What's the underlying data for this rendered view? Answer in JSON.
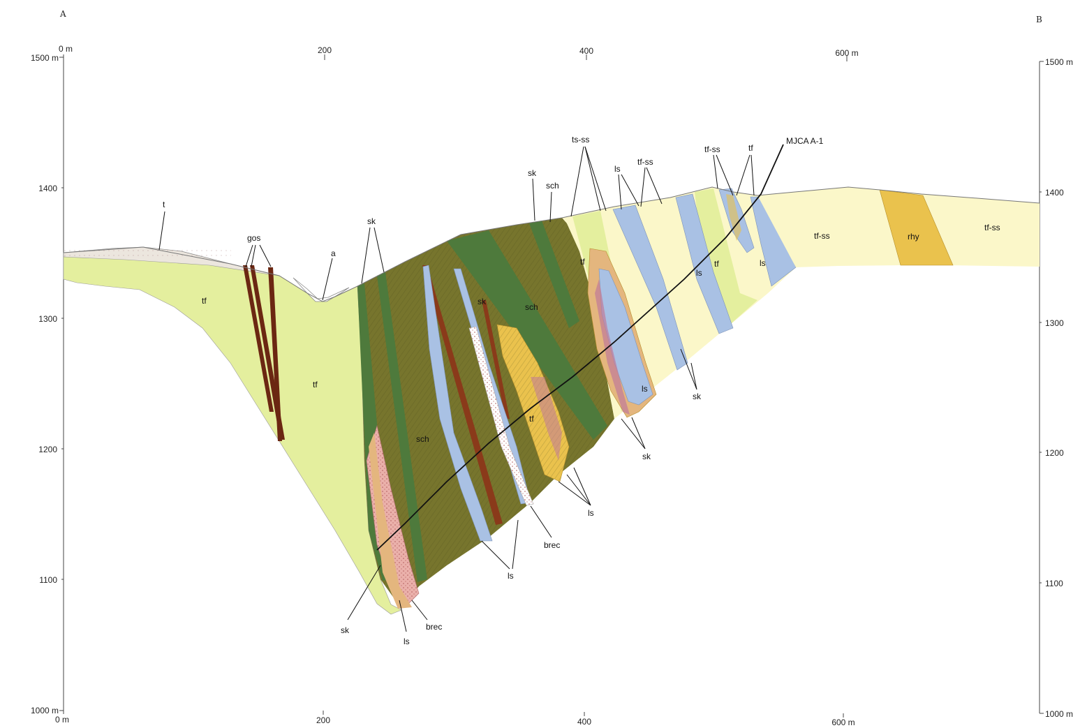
{
  "section_ends": {
    "left": "A",
    "right": "B"
  },
  "scale_top": {
    "origin": "0 m",
    "t200": "200",
    "t400": "400",
    "t600": "600 m"
  },
  "scale_bottom": {
    "origin": "0 m",
    "t200": "200",
    "t400": "400",
    "t600": "600 m"
  },
  "elev_left": {
    "e1500": "1500 m",
    "e1400": "1400",
    "e1300": "1300",
    "e1200": "1200",
    "e1100": "1100",
    "e1000": "1000 m"
  },
  "elev_right": {
    "e1500": "1500 m",
    "e1400": "1400",
    "e1300": "1300",
    "e1200": "1200",
    "e1100": "1100",
    "e1000": "1000 m"
  },
  "drillhole": "MJCA A-1",
  "labels": {
    "t": "t",
    "gos": "gos",
    "a": "a",
    "tf_1": "tf",
    "tf_2": "tf",
    "tf_3": "tf",
    "tf_4": "tf",
    "tf_5": "tf",
    "tf_top": "tf",
    "sk_top_1": "sk",
    "sk_top_2": "sk",
    "sk_in": "sk",
    "sk_b1": "sk",
    "sk_mid": "sk",
    "sk_r": "sk",
    "sch_top": "sch",
    "sch_in1": "sch",
    "sch_in2": "sch",
    "ts_ss": "ts-ss",
    "ls_top": "ls",
    "tf_ss_top": "tf-ss",
    "tf_ss_top2": "tf-ss",
    "ls_in1": "ls",
    "ls_in2": "ls",
    "ls_in3": "ls",
    "ls_b1": "ls",
    "ls_b2": "ls",
    "ls_b3": "ls",
    "brec_1": "brec",
    "brec_2": "brec",
    "tf_ss_r1": "tf-ss",
    "tf_ss_r2": "tf-ss",
    "rhy": "rhy"
  },
  "colors": {
    "tuff": "#e4ef9e",
    "tf_ss": "#fbf7c9",
    "limestone": "#a9c1e4",
    "schist": "#77752d",
    "skarn": "#4e7a3c",
    "gossan": "#6b2712",
    "rhyolite": "#eac24d",
    "breccia": "#eab0aa",
    "alluvium": "#ece6de",
    "tf_bright": "#e6f0a0",
    "aureole": "#e4b67e"
  }
}
